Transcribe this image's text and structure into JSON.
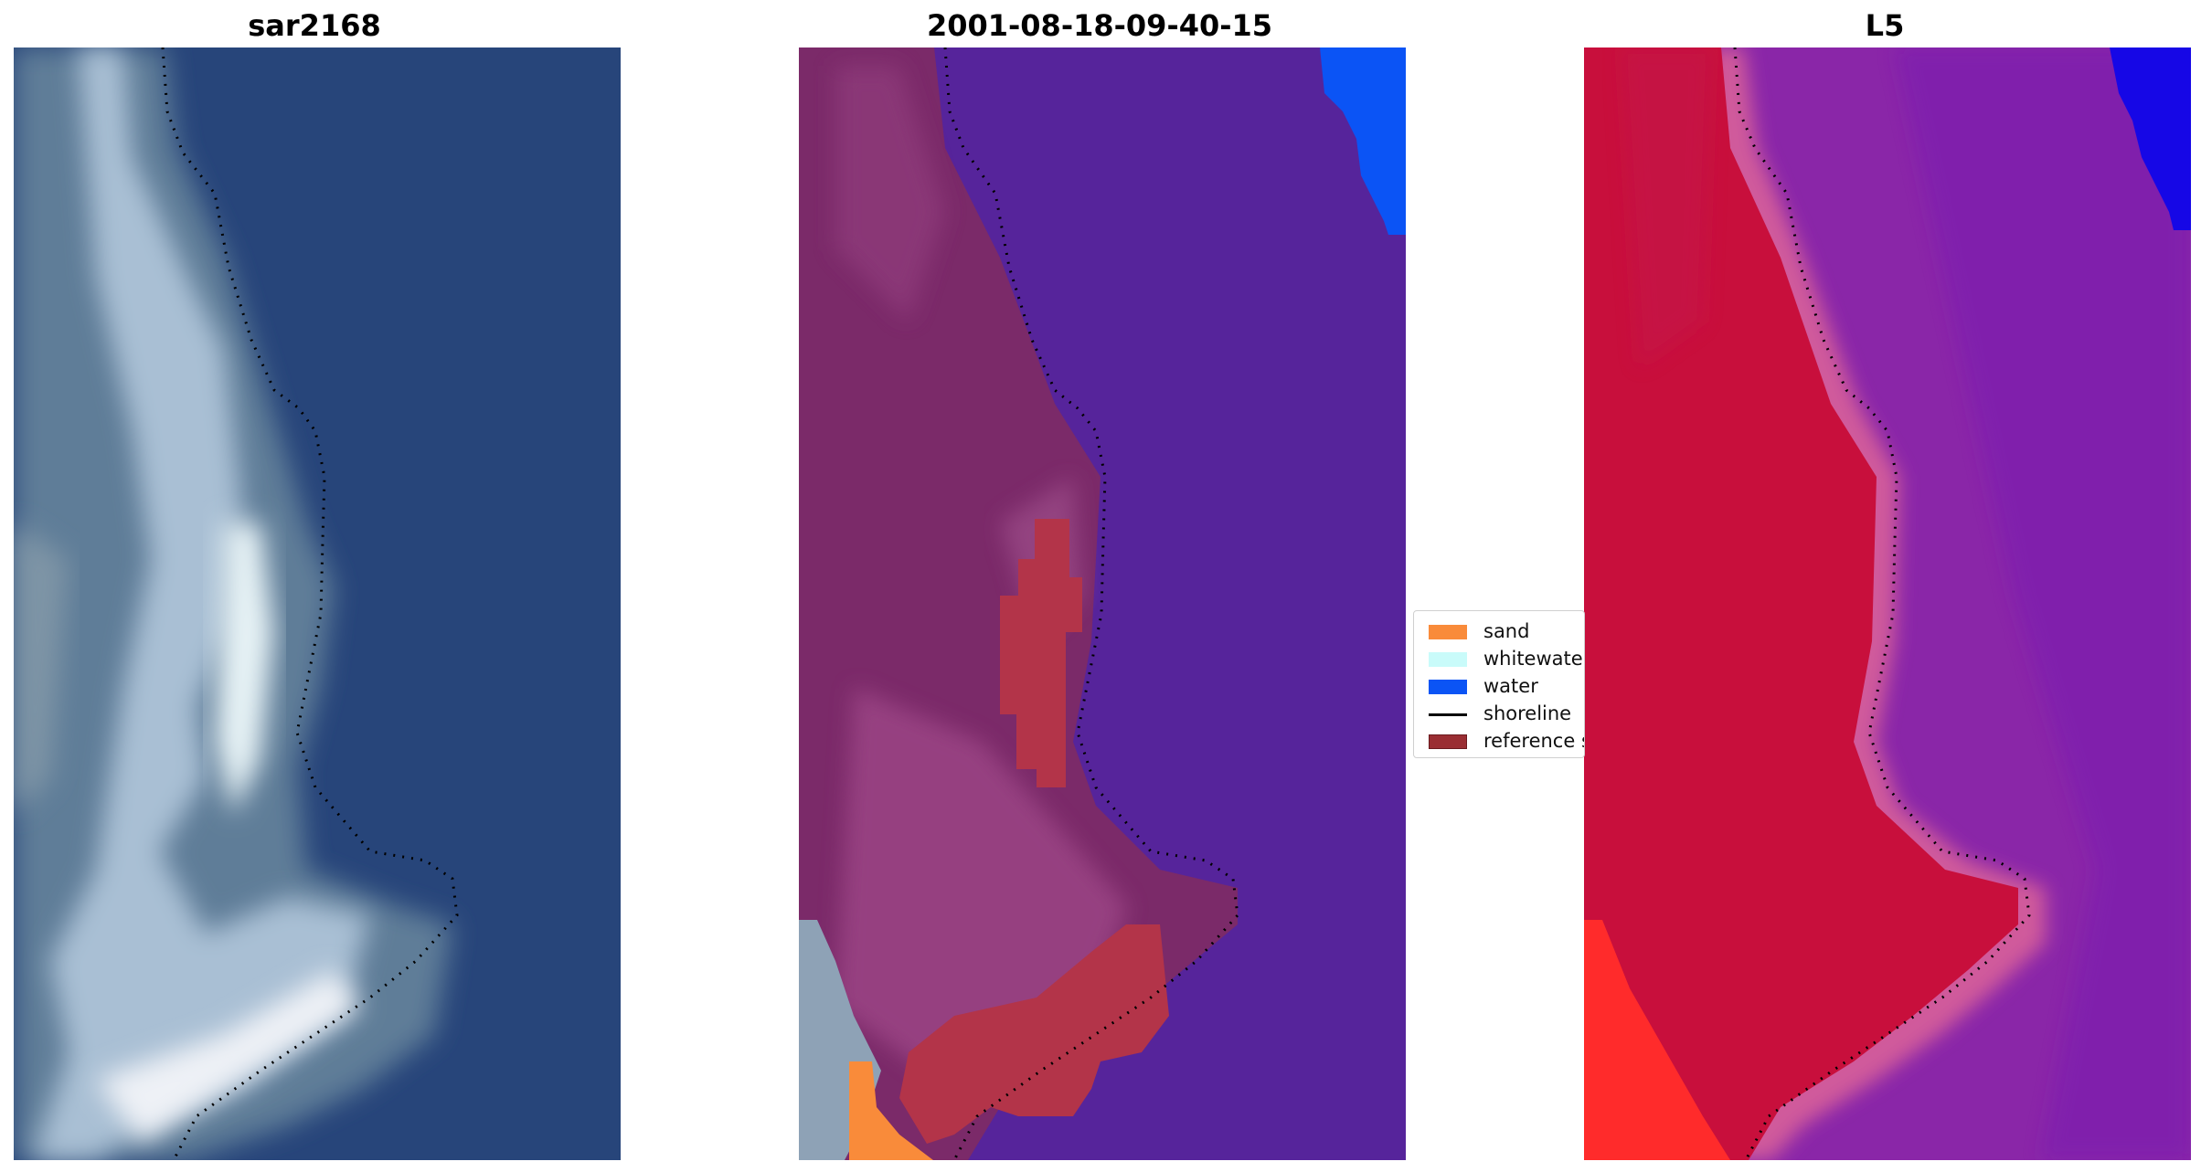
{
  "panels": {
    "rgb": {
      "title": "sar2168"
    },
    "classified": {
      "title": "2001-08-18-09-40-15"
    },
    "index": {
      "title": "L5"
    }
  },
  "legend": {
    "items": [
      {
        "label": "sand",
        "color": "#f98b3a"
      },
      {
        "label": "whitewater",
        "color": "#c9fbfa"
      },
      {
        "label": "water",
        "color": "#0b54f5"
      },
      {
        "label": "shoreline",
        "color": "#000000"
      },
      {
        "label": "reference s",
        "color": "#9a2e33"
      }
    ]
  },
  "colors": {
    "ocean_rgb": "#27457a",
    "land_rgb": "#5f7d98",
    "surf_rgb": "#dfe8f2",
    "ocean_class": "#56249b",
    "land_class": "#7b2a69",
    "index_land": "#c80f3c",
    "index_sea": "#8a26a8"
  }
}
